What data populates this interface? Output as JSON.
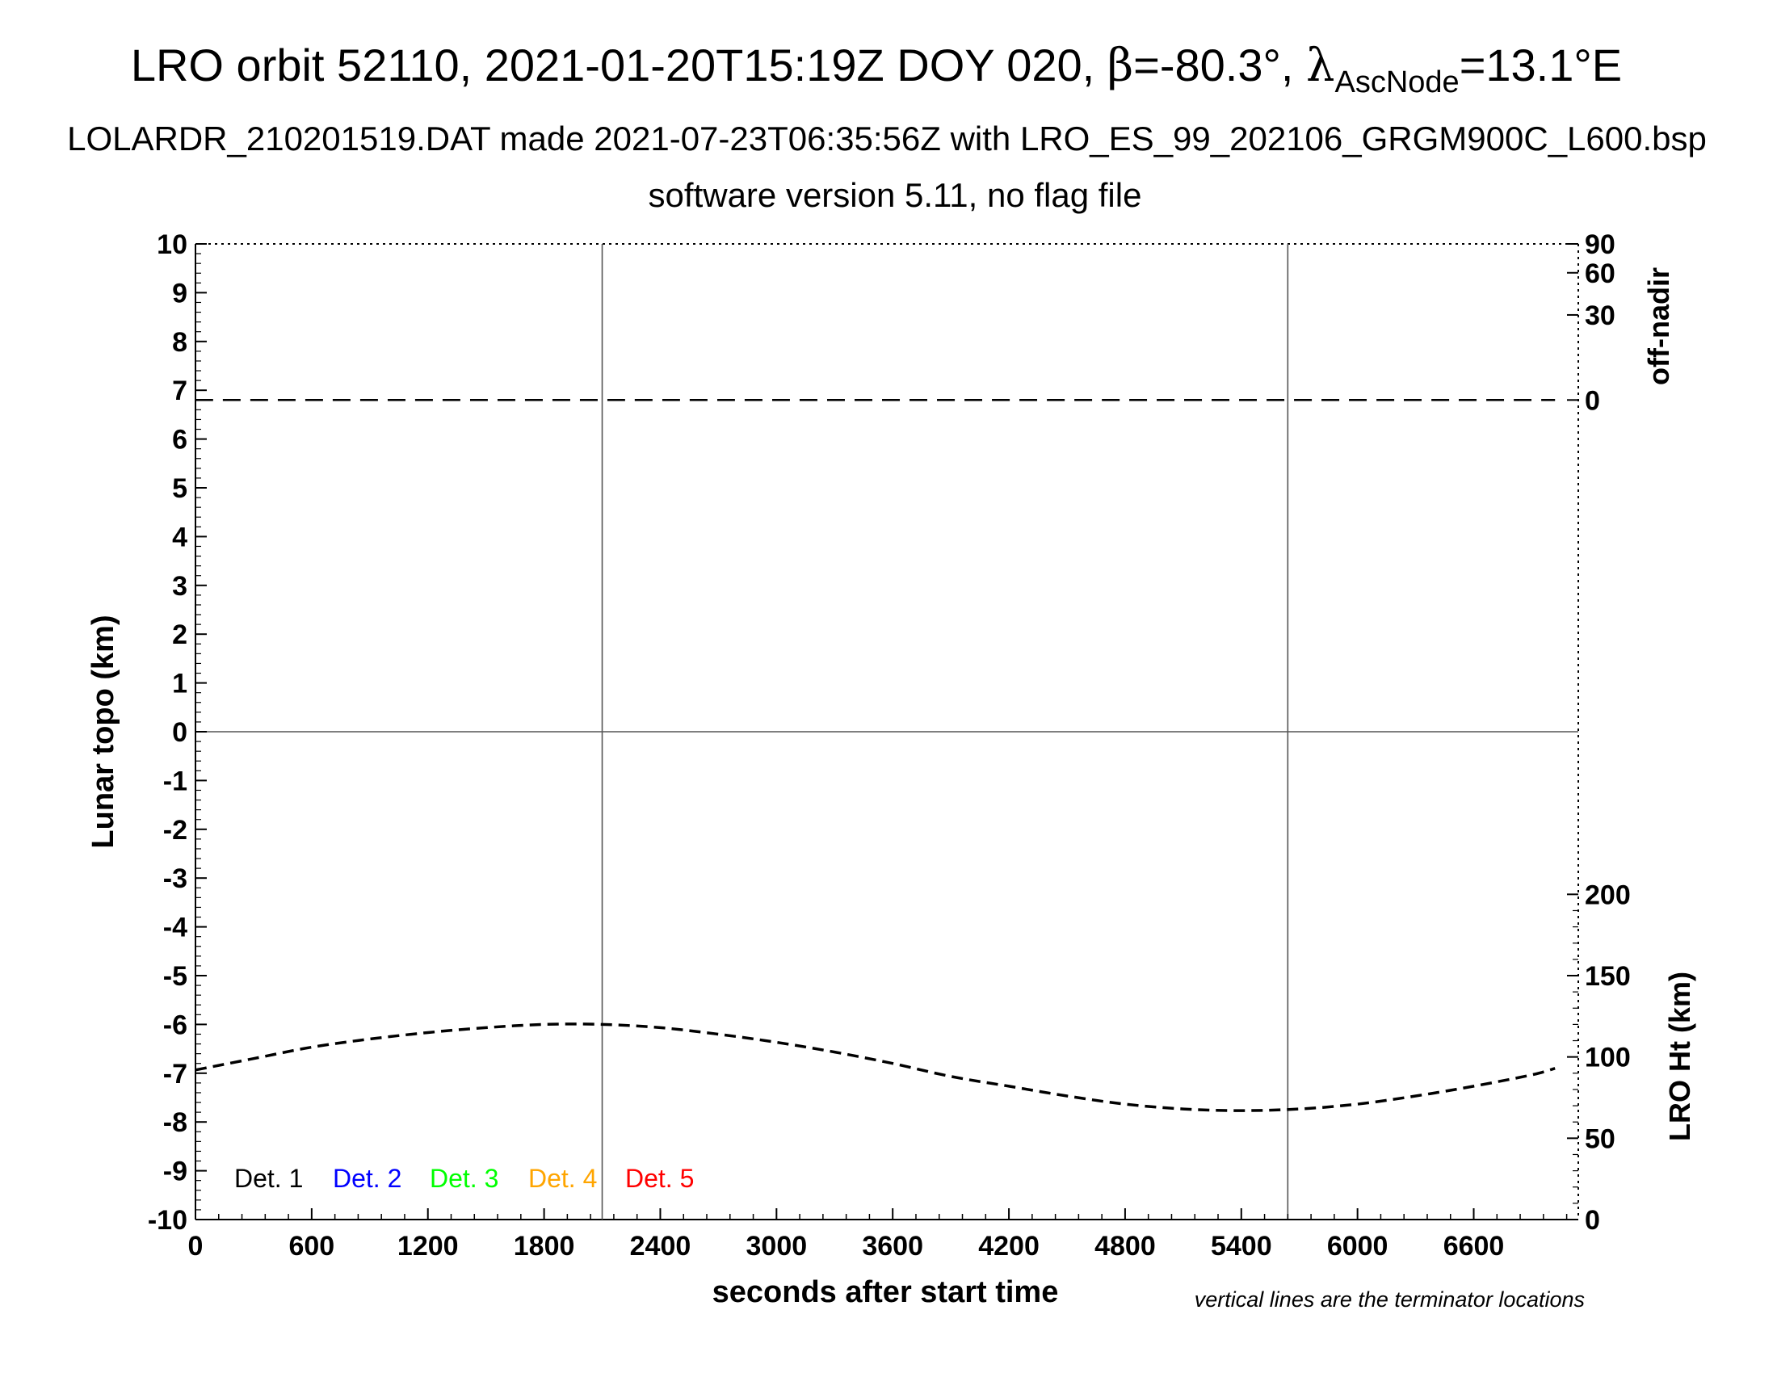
{
  "header": {
    "title_prefix": "LRO orbit 52110, 2021-01-20T15:19Z DOY 020, ",
    "beta_symbol": "β",
    "beta_value": "=-80.3°, ",
    "lambda_symbol": "λ",
    "lambda_subscript": "AscNode",
    "lambda_value": "=13.1°E",
    "line2": "LOLARDR_210201519.DAT made 2021-07-23T06:35:56Z with LRO_ES_99_202106_GRGM900C_L600.bsp",
    "line3": "software version 5.11, no flag file"
  },
  "footnote": "vertical lines are the terminator locations",
  "colors": {
    "det1": "#000000",
    "det2": "#0000ff",
    "det3": "#00ff00",
    "det4": "#ffa500",
    "det5": "#ff0000"
  },
  "chart_data": {
    "type": "line",
    "xlabel": "seconds after start time",
    "ylabel": "Lunar topo (km)",
    "xlim": [
      0,
      7140
    ],
    "ylim": [
      -10,
      10
    ],
    "x_ticks": [
      "0",
      "600",
      "1200",
      "1800",
      "2400",
      "3000",
      "3600",
      "4200",
      "4800",
      "5400",
      "6000",
      "6600"
    ],
    "y_ticks": [
      "-10",
      "-9",
      "-8",
      "-7",
      "-6",
      "-5",
      "-4",
      "-3",
      "-2",
      "-1",
      "0",
      "1",
      "2",
      "3",
      "4",
      "5",
      "6",
      "7",
      "8",
      "9",
      "10"
    ],
    "terminator_lines_x": [
      2100,
      5640
    ],
    "right_axis_top": {
      "label": "off-nadir",
      "ticks": [
        "0",
        "30",
        "60",
        "90"
      ]
    },
    "right_axis_bottom": {
      "label": "LRO Ht (km)",
      "ylim": [
        0,
        200
      ],
      "ticks": [
        "0",
        "50",
        "100",
        "150",
        "200"
      ]
    },
    "legend": {
      "placement": "bottom-left",
      "entries": [
        "Det. 1",
        "Det. 2",
        "Det. 3",
        "Det. 4",
        "Det. 5"
      ]
    },
    "series": [
      {
        "name": "off-nadir",
        "axis": "right-top",
        "style": "dashed",
        "x": [
          0,
          7020
        ],
        "y": [
          0,
          0
        ]
      },
      {
        "name": "LRO Ht (km)",
        "axis": "right-bottom",
        "style": "dashed",
        "x": [
          0,
          300,
          600,
          900,
          1200,
          1500,
          1800,
          2100,
          2400,
          2700,
          3000,
          3300,
          3600,
          3900,
          4200,
          4500,
          4800,
          5100,
          5400,
          5700,
          6000,
          6300,
          6600,
          6900,
          7020
        ],
        "y": [
          92,
          99,
          106,
          111,
          115,
          118,
          120,
          120,
          118,
          114,
          109,
          103,
          96,
          88,
          82,
          76,
          71,
          68,
          67,
          68,
          71,
          76,
          82,
          89,
          93
        ]
      }
    ]
  }
}
